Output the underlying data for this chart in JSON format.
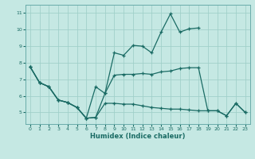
{
  "xlabel": "Humidex (Indice chaleur)",
  "bg_color": "#c5e8e3",
  "grid_color": "#9ecfc8",
  "line_color": "#1a6b64",
  "xlim": [
    -0.5,
    23.5
  ],
  "ylim": [
    4.3,
    11.5
  ],
  "xticks": [
    0,
    1,
    2,
    3,
    4,
    5,
    6,
    7,
    8,
    9,
    10,
    11,
    12,
    13,
    14,
    15,
    16,
    17,
    18,
    19,
    20,
    21,
    22,
    23
  ],
  "yticks": [
    5,
    6,
    7,
    8,
    9,
    10,
    11
  ],
  "line1_x": [
    0,
    1,
    2,
    3,
    4,
    5,
    6,
    7,
    8,
    9,
    10,
    11,
    12,
    13,
    14,
    15,
    16,
    17,
    18
  ],
  "line1_y": [
    7.75,
    6.8,
    6.55,
    5.75,
    5.6,
    5.3,
    4.65,
    4.7,
    6.15,
    8.6,
    8.45,
    9.05,
    9.0,
    8.6,
    9.85,
    10.95,
    9.85,
    10.05,
    10.1
  ],
  "line2_x": [
    0,
    1,
    2,
    3,
    4,
    5,
    6,
    7,
    8,
    9,
    10,
    11,
    12,
    13,
    14,
    15,
    16,
    17,
    18,
    19,
    20,
    21,
    22,
    23
  ],
  "line2_y": [
    7.75,
    6.8,
    6.55,
    5.75,
    5.6,
    5.3,
    4.65,
    6.55,
    6.15,
    7.25,
    7.3,
    7.3,
    7.35,
    7.3,
    7.45,
    7.5,
    7.65,
    7.7,
    7.7,
    5.1,
    5.1,
    4.8,
    5.55,
    5.0
  ],
  "line3_x": [
    0,
    1,
    2,
    3,
    4,
    5,
    6,
    7,
    8,
    9,
    10,
    11,
    12,
    13,
    14,
    15,
    16,
    17,
    18,
    19,
    20,
    21,
    22,
    23
  ],
  "line3_y": [
    7.75,
    6.8,
    6.55,
    5.75,
    5.6,
    5.3,
    4.65,
    4.7,
    5.55,
    5.55,
    5.5,
    5.5,
    5.4,
    5.3,
    5.25,
    5.2,
    5.2,
    5.15,
    5.1,
    5.1,
    5.1,
    4.8,
    5.55,
    5.0
  ]
}
